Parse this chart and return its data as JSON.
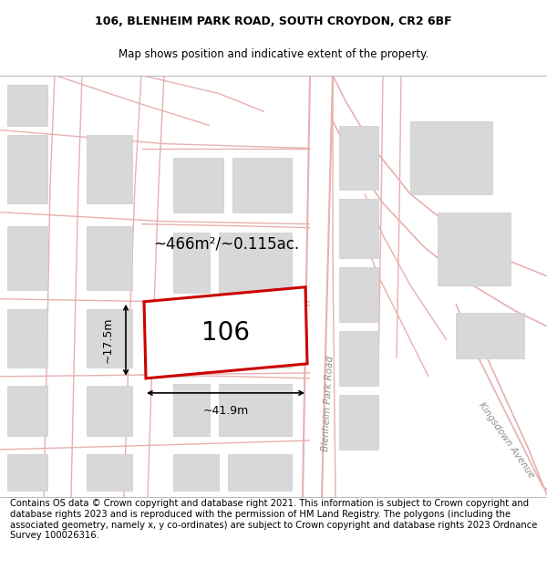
{
  "title_line1": "106, BLENHEIM PARK ROAD, SOUTH CROYDON, CR2 6BF",
  "title_line2": "Map shows position and indicative extent of the property.",
  "footer_text": "Contains OS data © Crown copyright and database right 2021. This information is subject to Crown copyright and database rights 2023 and is reproduced with the permission of HM Land Registry. The polygons (including the associated geometry, namely x, y co-ordinates) are subject to Crown copyright and database rights 2023 Ordnance Survey 100026316.",
  "area_label": "~466m²/~0.115ac.",
  "width_label": "~41.9m",
  "height_label": "~17.5m",
  "property_number": "106",
  "road_label1": "Blenheim Park Road",
  "road_label2": "Kingsdown Avenue",
  "map_bg": "#f0f0f0",
  "red_line": "#cc0000",
  "pink_road": "#e8b0b0",
  "block_fill": "#d8d8d8",
  "block_edge": "#cccccc",
  "title_fontsize": 9,
  "footer_fontsize": 7.2
}
